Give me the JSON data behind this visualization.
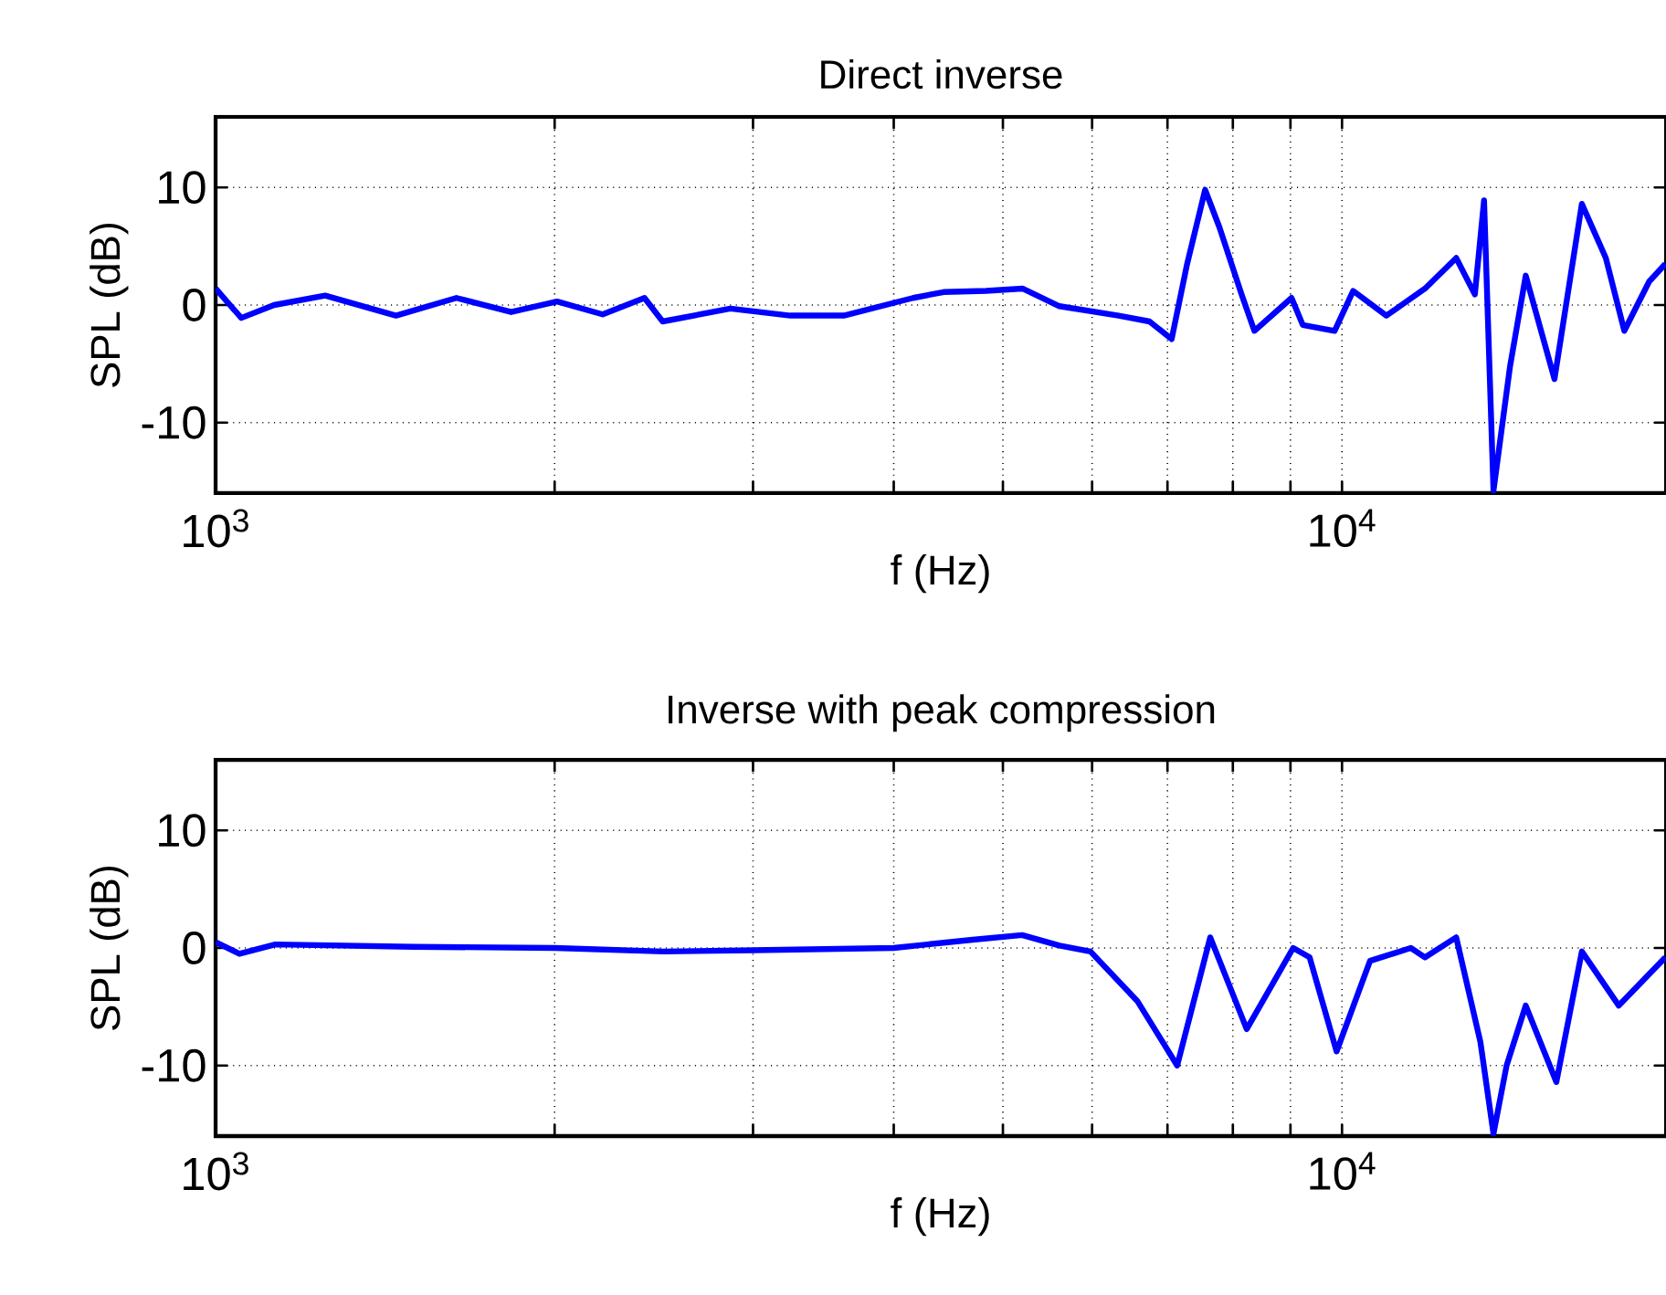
{
  "chart_data": [
    {
      "type": "line",
      "title": "Direct inverse",
      "xlabel": "f (Hz)",
      "ylabel": "SPL (dB)",
      "log": "x",
      "grid": true,
      "line_style": "solid",
      "marker": "none",
      "xlim": [
        1000,
        19400
      ],
      "ylim": [
        -16,
        16
      ],
      "xticks": [
        {
          "value": 1000,
          "label": "10$^{3}$"
        },
        {
          "value": 2000,
          "label": null
        },
        {
          "value": 3000,
          "label": null
        },
        {
          "value": 4000,
          "label": null
        },
        {
          "value": 5000,
          "label": null
        },
        {
          "value": 6000,
          "label": null
        },
        {
          "value": 7000,
          "label": null
        },
        {
          "value": 8000,
          "label": null
        },
        {
          "value": 9000,
          "label": null
        },
        {
          "value": 10000,
          "label": "10$^{4}$"
        }
      ],
      "yticks": [
        -10,
        0,
        10
      ],
      "x": [
        1000,
        1054,
        1127,
        1251,
        1446,
        1636,
        1830,
        2010,
        2206,
        2403,
        2494,
        2864,
        3238,
        3612,
        4161,
        4429,
        4830,
        5204,
        5612,
        6334,
        6747,
        7060,
        7287,
        7560,
        7785,
        8145,
        8360,
        9020,
        9230,
        9850,
        10230,
        10950,
        11850,
        12630,
        13120,
        13370,
        13630,
        14100,
        14560,
        15440,
        16330,
        17150,
        17810,
        18740,
        19370
      ],
      "series": [
        {
          "color": "#0000ff",
          "values": [
            1.4,
            -1.1,
            0,
            0.8,
            -0.9,
            0.6,
            -0.6,
            0.3,
            -0.8,
            0.6,
            -1.4,
            -0.3,
            -0.9,
            -0.9,
            0.6,
            1.1,
            1.2,
            1.4,
            -0.1,
            -0.9,
            -1.4,
            -2.9,
            3.5,
            9.8,
            6.6,
            0.9,
            -2.2,
            0.6,
            -1.7,
            -2.2,
            1.2,
            -0.9,
            1.4,
            4.0,
            0.9,
            8.9,
            -15.8,
            -5.2,
            2.5,
            -6.3,
            8.6,
            4.0,
            -2.2,
            2.0,
            3.5
          ]
        }
      ]
    },
    {
      "type": "line",
      "title": "Inverse with peak compression",
      "xlabel": "f (Hz)",
      "ylabel": "SPL (dB)",
      "log": "x",
      "grid": true,
      "line_style": "solid",
      "marker": "none",
      "xlim": [
        1000,
        19400
      ],
      "ylim": [
        -16,
        16
      ],
      "xticks": [
        {
          "value": 1000,
          "label": "10$^{3}$"
        },
        {
          "value": 2000,
          "label": null
        },
        {
          "value": 3000,
          "label": null
        },
        {
          "value": 4000,
          "label": null
        },
        {
          "value": 5000,
          "label": null
        },
        {
          "value": 6000,
          "label": null
        },
        {
          "value": 7000,
          "label": null
        },
        {
          "value": 8000,
          "label": null
        },
        {
          "value": 9000,
          "label": null
        },
        {
          "value": 10000,
          "label": "10$^{4}$"
        }
      ],
      "yticks": [
        -10,
        0,
        10
      ],
      "x": [
        1000,
        1050,
        1130,
        1500,
        2000,
        2500,
        3000,
        4000,
        4700,
        5200,
        5612,
        5980,
        6580,
        7140,
        7640,
        8230,
        9050,
        9360,
        9890,
        10590,
        11510,
        11850,
        12630,
        13270,
        13630,
        14000,
        14560,
        15500,
        16330,
        17610,
        19370
      ],
      "series": [
        {
          "color": "#0000ff",
          "values": [
            0.5,
            -0.5,
            0.3,
            0.1,
            0,
            -0.3,
            -0.2,
            0,
            0.7,
            1.1,
            0.2,
            -0.3,
            -4.5,
            -10,
            0.9,
            -6.9,
            0,
            -0.8,
            -8.8,
            -1.1,
            0,
            -0.8,
            0.9,
            -8.0,
            -15.8,
            -10,
            -4.9,
            -11.4,
            -0.3,
            -4.9,
            -0.8
          ]
        }
      ]
    }
  ]
}
